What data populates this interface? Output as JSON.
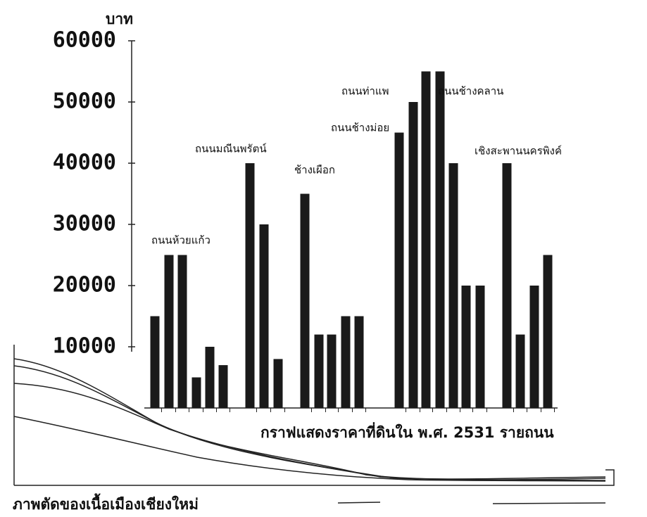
{
  "chart_data": {
    "type": "bar",
    "unit_label": "บาท",
    "caption": "กราฟแสดงราคาที่ดินใน พ.ศ. 2531 รายถนน",
    "section_caption": "ภาพตัดของเนื้อเมืองเชียงใหม่",
    "color": "#1a1a1a",
    "ylim": [
      0,
      60000
    ],
    "yticks": [
      10000,
      20000,
      30000,
      40000,
      50000,
      60000
    ],
    "groups": [
      {
        "labels": [
          "ถนนห้วยแก้ว"
        ],
        "values": [
          15000,
          25000,
          25000,
          5000,
          10000,
          7000
        ]
      },
      {
        "labels": [
          "ถนนมณีนพรัตน์"
        ],
        "values": [
          40000,
          30000,
          8000
        ]
      },
      {
        "labels": [
          "ช้างเผือก"
        ],
        "values": [
          35000,
          12000,
          12000,
          15000,
          15000
        ]
      },
      {
        "labels": [
          "ถนนช้างม่อย",
          "ถนนท่าแพ",
          "ถนนช้างคลาน"
        ],
        "values": [
          45000,
          50000,
          55000,
          55000,
          40000,
          20000,
          20000
        ]
      },
      {
        "labels": [
          "เชิงสะพานนครพิงค์"
        ],
        "values": [
          40000,
          12000,
          20000,
          25000
        ]
      }
    ]
  }
}
